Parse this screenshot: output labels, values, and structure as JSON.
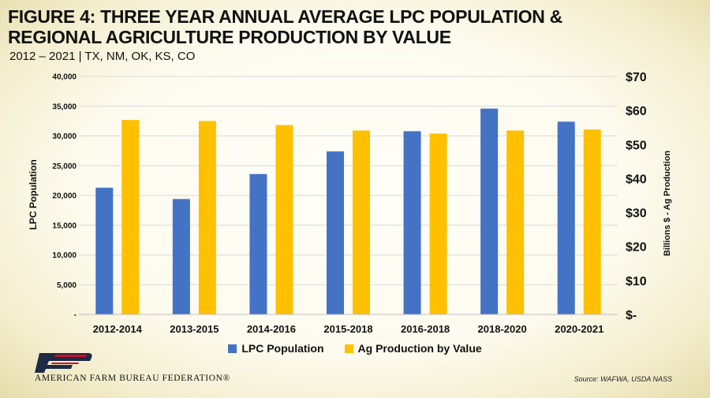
{
  "header": {
    "title": "FIGURE 4: THREE YEAR ANNUAL AVERAGE LPC POPULATION & REGIONAL AGRICULTURE PRODUCTION BY VALUE",
    "subtitle": "2012 – 2021 | TX, NM, OK, KS, CO"
  },
  "footer": {
    "org_name": "AMERICAN FARM BUREAU FEDERATION®",
    "source": "Source: WAFWA, USDA NASS"
  },
  "colors": {
    "lpc": "#4472C4",
    "ag": "#FFC000",
    "grid": "#D9D9D9",
    "logo_blue": "#1f2a44",
    "logo_red": "#c8102e"
  },
  "chart_data": {
    "type": "bar",
    "categories": [
      "2012-2014",
      "2013-2015",
      "2014-2016",
      "2015-2018",
      "2016-2018",
      "2018-2020",
      "2020-2021"
    ],
    "series": [
      {
        "name": "LPC Population",
        "axis": "left",
        "values": [
          21300,
          19400,
          23600,
          27400,
          30800,
          34600,
          32400
        ]
      },
      {
        "name": "Ag Production by Value",
        "axis": "right",
        "values": [
          57.2,
          56.9,
          55.7,
          54.1,
          53.2,
          54.1,
          54.4
        ]
      }
    ],
    "ylabel": "LPC Population",
    "y2label": "Billions $ - Ag Production",
    "ylim": [
      0,
      40000
    ],
    "y2lim": [
      0,
      70
    ],
    "yticks": [
      "-",
      "5,000",
      "10,000",
      "15,000",
      "20,000",
      "25,000",
      "30,000",
      "35,000",
      "40,000"
    ],
    "y2ticks": [
      "$-",
      "$10",
      "$20",
      "$30",
      "$40",
      "$50",
      "$60",
      "$70"
    ],
    "grid": true,
    "legend": "bottom-center"
  }
}
